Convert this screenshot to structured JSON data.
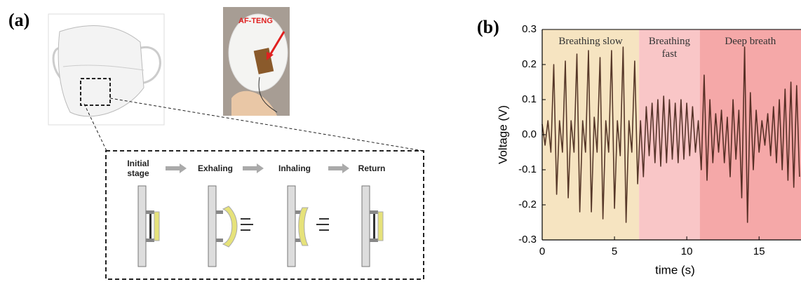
{
  "panel_a": {
    "label": "(a)",
    "photo_label": "AF-TENG",
    "stages": [
      "Initial\nstage",
      "Exhaling",
      "Inhaling",
      "Return"
    ]
  },
  "chart_data": {
    "type": "line",
    "panel_label": "(b)",
    "x_label": "time (s)",
    "y_label": "Voltage (V)",
    "xlim": [
      0,
      17.9
    ],
    "ylim": [
      -0.3,
      0.3
    ],
    "xticks": [
      0,
      5,
      10,
      15
    ],
    "yticks": [
      -0.3,
      -0.2,
      -0.1,
      {
        "value": 0,
        "label": "0.0"
      },
      0.1,
      0.2,
      0.3
    ],
    "regions": [
      {
        "label": "Breathing slow",
        "start": 0,
        "end": 6.7,
        "color": "#f6e4c1"
      },
      {
        "label": "Breathing\nfast",
        "start": 6.7,
        "end": 10.9,
        "color": "#f9c6c7"
      },
      {
        "label": "Deep breath",
        "start": 10.9,
        "end": 17.9,
        "color": "#f5a8a8"
      }
    ],
    "color": "#3b1a0e",
    "x": [
      0,
      0.2,
      0.4,
      0.6,
      0.8,
      1.0,
      1.2,
      1.4,
      1.6,
      1.8,
      2.0,
      2.2,
      2.4,
      2.6,
      2.8,
      3.0,
      3.2,
      3.4,
      3.6,
      3.8,
      4.0,
      4.2,
      4.4,
      4.6,
      4.8,
      5.0,
      5.2,
      5.4,
      5.6,
      5.8,
      6.0,
      6.2,
      6.4,
      6.6,
      6.8,
      7.0,
      7.2,
      7.4,
      7.6,
      7.8,
      8.0,
      8.2,
      8.4,
      8.6,
      8.8,
      9.0,
      9.2,
      9.4,
      9.6,
      9.8,
      10.0,
      10.2,
      10.4,
      10.6,
      10.8,
      11.0,
      11.2,
      11.4,
      11.6,
      11.8,
      12.0,
      12.2,
      12.4,
      12.6,
      12.8,
      13.0,
      13.2,
      13.4,
      13.6,
      13.8,
      14.0,
      14.2,
      14.4,
      14.6,
      14.8,
      15.0,
      15.2,
      15.4,
      15.6,
      15.8,
      16.0,
      16.2,
      16.4,
      16.6,
      16.8,
      17.0,
      17.2,
      17.4,
      17.6,
      17.8
    ],
    "values": [
      0.03,
      -0.03,
      0.04,
      -0.05,
      0.2,
      -0.17,
      0.04,
      -0.05,
      0.21,
      -0.18,
      0.04,
      -0.05,
      0.23,
      -0.22,
      0.04,
      -0.05,
      0.24,
      -0.22,
      0.05,
      -0.05,
      0.22,
      -0.24,
      0.04,
      -0.05,
      0.24,
      -0.21,
      0.04,
      -0.06,
      0.25,
      -0.25,
      0.04,
      -0.05,
      0.21,
      -0.14,
      0.04,
      -0.12,
      0.08,
      -0.06,
      0.09,
      -0.08,
      0.1,
      -0.09,
      0.11,
      -0.08,
      0.1,
      -0.07,
      0.09,
      -0.08,
      0.1,
      -0.07,
      0.09,
      -0.06,
      0.08,
      -0.05,
      0.04,
      -0.1,
      0.17,
      -0.13,
      0.1,
      -0.08,
      0.06,
      -0.05,
      0.07,
      -0.08,
      0.05,
      -0.12,
      0.1,
      -0.07,
      0.07,
      -0.18,
      0.25,
      -0.25,
      0.12,
      -0.1,
      0.07,
      -0.05,
      0.04,
      -0.03,
      0.06,
      -0.06,
      0.08,
      -0.08,
      0.1,
      -0.1,
      0.13,
      -0.13,
      0.15,
      -0.15,
      0.14,
      -0.12
    ]
  }
}
